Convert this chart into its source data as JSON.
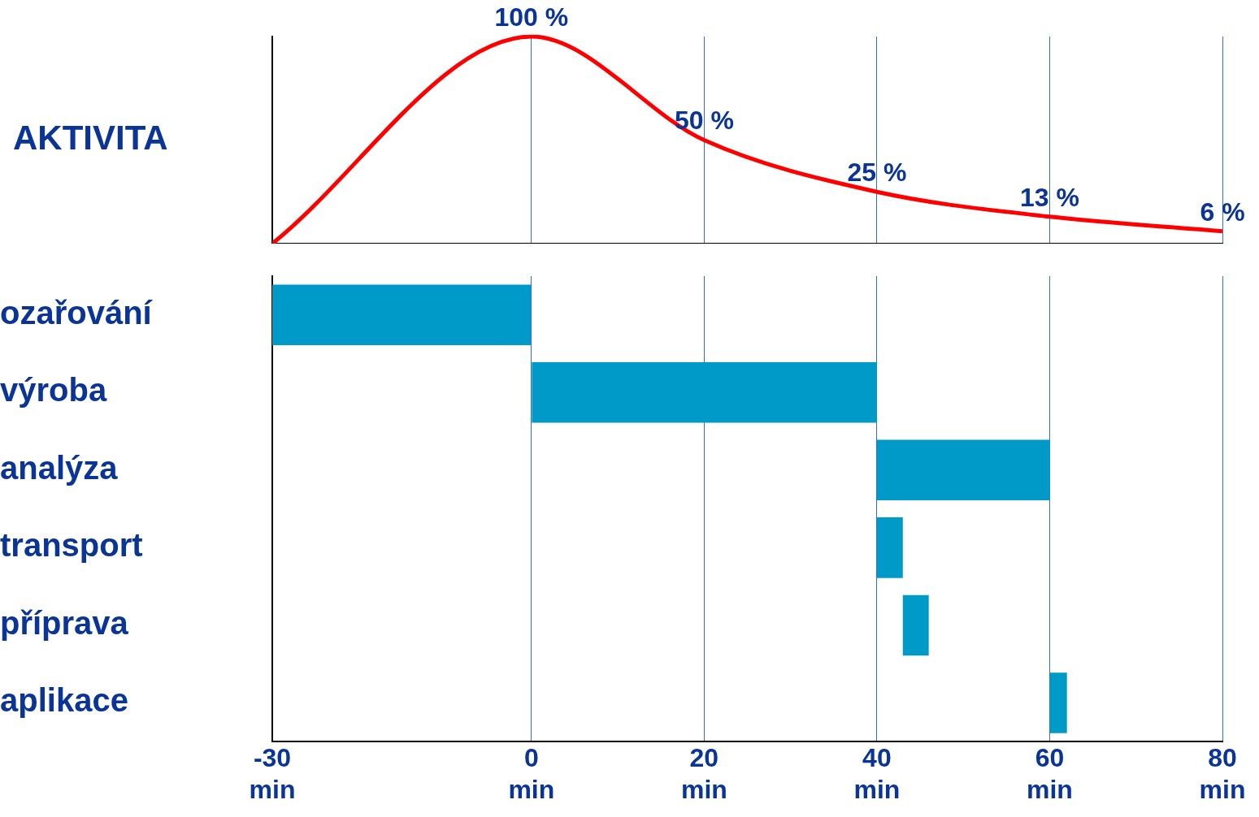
{
  "chart_data": [
    {
      "type": "line",
      "ylabel": "AKTIVITA",
      "x": [
        -30,
        0,
        20,
        40,
        60,
        80
      ],
      "series": [
        {
          "color": "#ff0000",
          "values": [
            0,
            100,
            50,
            25,
            13,
            6
          ],
          "value_labels": [
            null,
            "100 %",
            "50 %",
            "25 %",
            "13 %",
            "6 %"
          ]
        }
      ],
      "xlim": [
        -30,
        80
      ],
      "xticks": [
        -30,
        0,
        20,
        40,
        60,
        80
      ],
      "grid": "x",
      "tick_labels": false,
      "marker": "none",
      "line_style": "solid",
      "legend": false
    },
    {
      "type": "bar",
      "orientation": "horizontal",
      "categories": [
        "ozařování",
        "výroba",
        "analýza",
        "transport",
        "příprava",
        "aplikace"
      ],
      "base": [
        -30,
        0,
        40,
        40,
        43,
        60
      ],
      "values": [
        30,
        40,
        20,
        3,
        3,
        2
      ],
      "color": "#009ac8",
      "xlim": [
        -30,
        80
      ],
      "xticks": [
        {
          "value": -30,
          "label": "-30 min"
        },
        {
          "value": 0,
          "label": "0 min"
        },
        {
          "value": 20,
          "label": "20 min"
        },
        {
          "value": 40,
          "label": "40 min"
        },
        {
          "value": 60,
          "label": "60 min"
        },
        {
          "value": 80,
          "label": "80 min"
        }
      ],
      "grid": "x",
      "legend": false
    }
  ]
}
